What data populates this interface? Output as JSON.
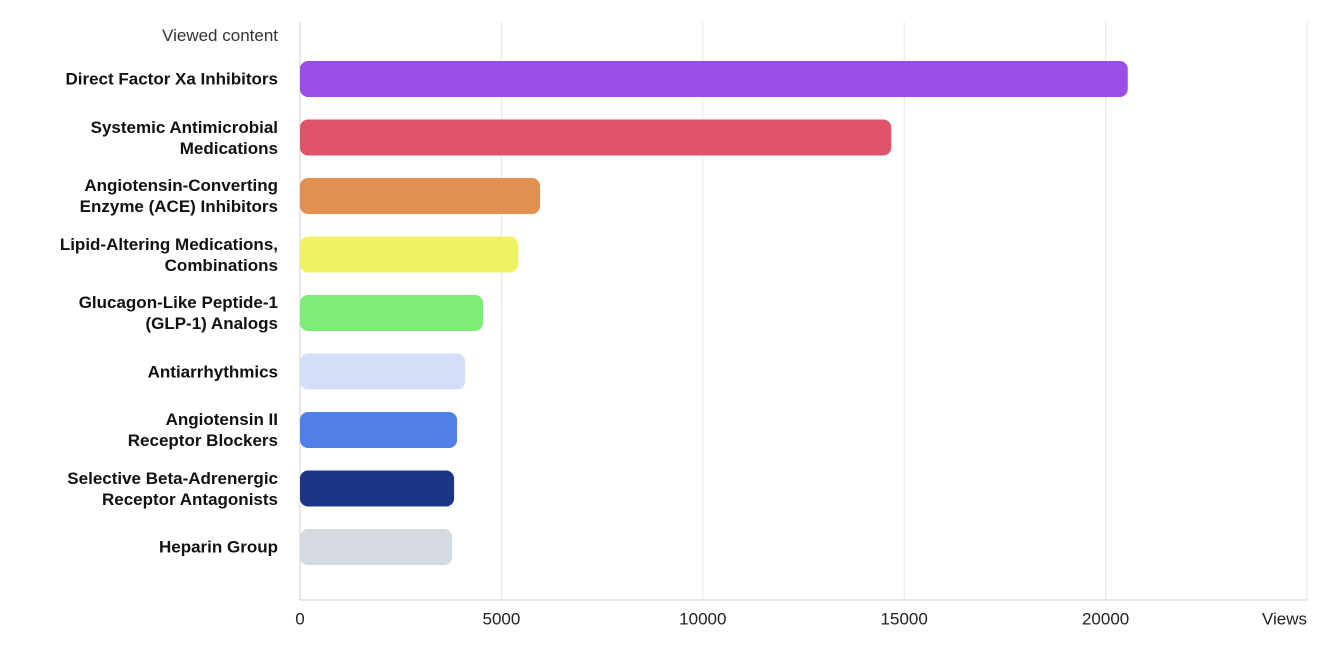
{
  "chart_data": {
    "type": "bar",
    "orientation": "horizontal",
    "y_label": "Viewed content",
    "x_label": "Views",
    "categories": [
      "Direct Factor Xa Inhibitors",
      "Systemic Antimicrobial\nMedications",
      "Angiotensin-Converting\nEnzyme (ACE) Inhibitors",
      "Lipid-Altering Medications,\nCombinations",
      "Glucagon-Like Peptide-1\n(GLP-1) Analogs",
      "Antiarrhythmics",
      "Angiotensin II\nReceptor Blockers",
      "Selective Beta-Adrenergic\nReceptor Antagonists",
      "Heparin Group"
    ],
    "values": [
      20550,
      14680,
      5960,
      5415,
      4545,
      4100,
      3900,
      3825,
      3775
    ],
    "colors": [
      "#9b4de8",
      "#e0546a",
      "#e28f52",
      "#eff263",
      "#7ded77",
      "#d3dff8",
      "#527ee8",
      "#1b3686",
      "#d5d9e0"
    ],
    "xlim": [
      0,
      25000
    ],
    "xticks": [
      0,
      5000,
      10000,
      15000,
      20000
    ],
    "grid": true
  }
}
